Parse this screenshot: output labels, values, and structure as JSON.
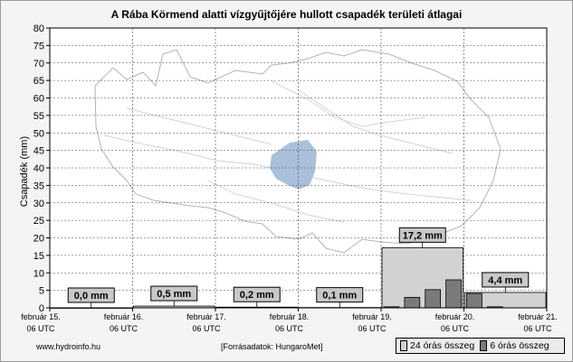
{
  "chart_data": {
    "type": "bar",
    "title": "A Rába Körmend alatti vízgyűjtőjére hullott csapadék területi átlagai",
    "ylabel": "Csapadék (mm)",
    "ylim": [
      0,
      80
    ],
    "y_ticks": [
      0,
      5,
      10,
      15,
      20,
      25,
      30,
      35,
      40,
      45,
      50,
      55,
      60,
      65,
      70,
      75,
      80
    ],
    "x_ticks": [
      {
        "line1": "február 15.",
        "line2": "06 UTC"
      },
      {
        "line1": "február 16.",
        "line2": "06 UTC"
      },
      {
        "line1": "február 17.",
        "line2": "06 UTC"
      },
      {
        "line1": "február 18.",
        "line2": "06 UTC"
      },
      {
        "line1": "február 19.",
        "line2": "06 UTC"
      },
      {
        "line1": "február 20.",
        "line2": "06 UTC"
      },
      {
        "line1": "február 21.",
        "line2": "06 UTC"
      }
    ],
    "grid": true,
    "series": [
      {
        "name": "24 órás összeg",
        "color": "#d2d2d2",
        "values": [
          0.0,
          0.5,
          0.2,
          0.1,
          17.2,
          4.4
        ],
        "labels": [
          "0,0 mm",
          "0,5 mm",
          "0,2 mm",
          "0,1 mm",
          "17,2 mm",
          "4,4 mm"
        ]
      },
      {
        "name": "6 órás összeg",
        "color": "#7a7a7a",
        "values": [
          0,
          0,
          0,
          0,
          0,
          0,
          0,
          0,
          0,
          0,
          0,
          0,
          0,
          0,
          0,
          0,
          0.3,
          3.0,
          5.2,
          8.0,
          4.1,
          0.3,
          0,
          0
        ]
      }
    ],
    "legend": "bottom-right"
  },
  "footer": {
    "source_left": "www.hydroinfo.hu",
    "source_center": "[Forrásadatok: HungaroMet]"
  }
}
